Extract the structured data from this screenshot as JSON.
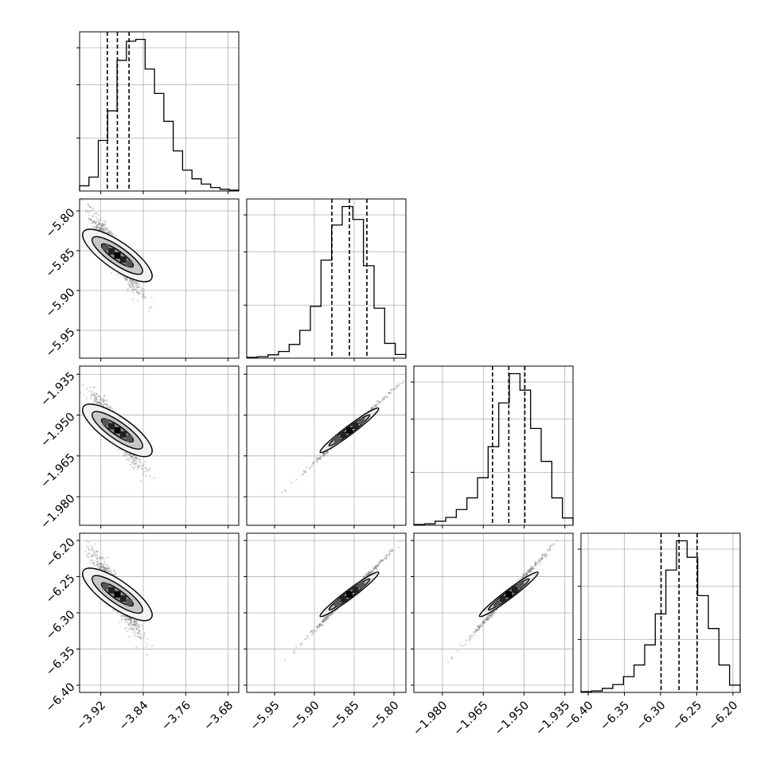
{
  "chart_data": {
    "type": "corner",
    "colors": {
      "lines": "#000000",
      "grid": "#b0b0b0",
      "scatter": "#7f7f7f",
      "frame": "#000000"
    },
    "grid": true,
    "parameters": [
      {
        "index": 0,
        "range": [
          -3.96,
          -3.66
        ],
        "ticks": [
          -3.92,
          -3.84,
          -3.76,
          -3.68
        ],
        "tick_labels": [
          "−3.92",
          "−3.84",
          "−3.76",
          "−3.68"
        ],
        "quantiles": [
          -3.9078,
          -3.8888,
          -3.8668
        ]
      },
      {
        "index": 1,
        "range": [
          -5.985,
          -5.785
        ],
        "ticks": [
          -5.95,
          -5.9,
          -5.85,
          -5.8
        ],
        "tick_labels": [
          "−5.95",
          "−5.90",
          "−5.85",
          "−5.80"
        ],
        "quantiles": [
          -5.878,
          -5.856,
          -5.834
        ]
      },
      {
        "index": 2,
        "range": [
          -1.9905,
          -1.932
        ],
        "ticks": [
          -1.98,
          -1.965,
          -1.95,
          -1.935
        ],
        "tick_labels": [
          "−1.980",
          "−1.965",
          "−1.950",
          "−1.935"
        ],
        "quantiles": [
          -1.9616,
          -1.9556,
          -1.9497
        ]
      },
      {
        "index": 3,
        "range": [
          -6.41,
          -6.19
        ],
        "ticks": [
          -6.4,
          -6.35,
          -6.3,
          -6.25,
          -6.2
        ],
        "tick_labels": [
          "−6.40",
          "−6.35",
          "−6.30",
          "−6.25",
          "−6.20"
        ],
        "quantiles": [
          -6.2993,
          -6.2745,
          -6.2495
        ]
      }
    ],
    "histograms": [
      {
        "param": 0,
        "counts": [
          3,
          8,
          29,
          46,
          75,
          86,
          87,
          70,
          56,
          40,
          23,
          12,
          7,
          4,
          2,
          1,
          0.5
        ]
      },
      {
        "param": 1,
        "counts": [
          0.4,
          0.8,
          1.8,
          3.6,
          7.4,
          15,
          28,
          53,
          72,
          82,
          75,
          50,
          27,
          8,
          2
        ]
      },
      {
        "param": 2,
        "counts": [
          0.4,
          0.8,
          2.2,
          4.3,
          8.6,
          15,
          26,
          43,
          67,
          83,
          74,
          53,
          35,
          15,
          4
        ]
      },
      {
        "param": 3,
        "counts": [
          0.4,
          0.8,
          2.2,
          4.3,
          8.6,
          15,
          26,
          43,
          67,
          83,
          74,
          53,
          35,
          15,
          4
        ]
      }
    ]
  }
}
